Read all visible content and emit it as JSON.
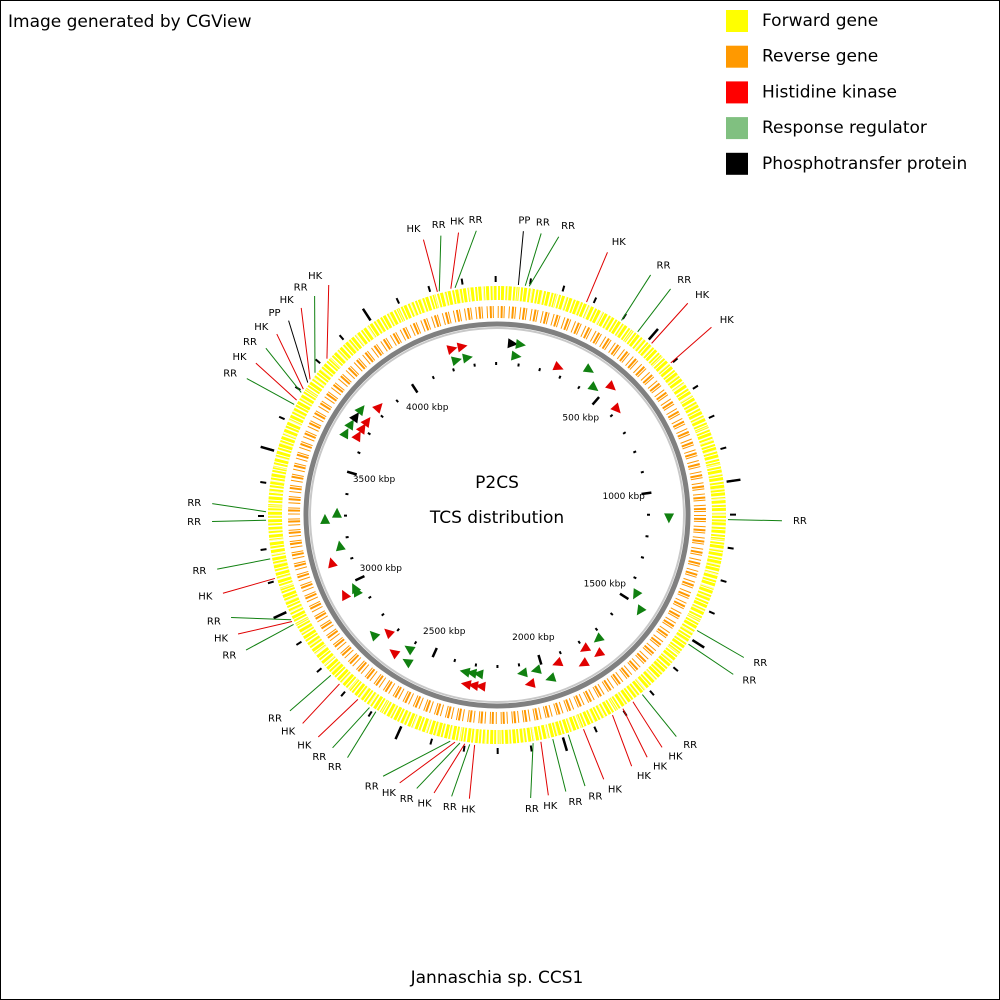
{
  "header": {
    "credit": "Image generated by CGView"
  },
  "legend": [
    {
      "label": "Forward gene",
      "color": "#ffff00"
    },
    {
      "label": "Reverse gene",
      "color": "#ff9900"
    },
    {
      "label": "Histidine kinase",
      "color": "#ff0000"
    },
    {
      "label": "Response regulator",
      "color": "#80c080"
    },
    {
      "label": "Phosphotransfer protein",
      "color": "#000000"
    }
  ],
  "map": {
    "title": "P2CS",
    "subtitle": "TCS distribution",
    "organism": "Jannaschia sp. CCS1",
    "kbp_lim": [
      0,
      4404
    ],
    "kbp_ticks": [
      {
        "value": 500,
        "label": "500 kbp"
      },
      {
        "value": 1000,
        "label": "1000 kbp"
      },
      {
        "value": 1500,
        "label": "1500 kbp"
      },
      {
        "value": 2000,
        "label": "2000 kbp"
      },
      {
        "value": 2500,
        "label": "2500 kbp"
      },
      {
        "value": 3000,
        "label": "3000 kbp"
      },
      {
        "value": 3500,
        "label": "3500 kbp"
      },
      {
        "value": 4000,
        "label": "4000 kbp"
      }
    ],
    "label_colors": {
      "HK": "#e00000",
      "RR": "#108010",
      "PP": "#000000"
    },
    "features": [
      {
        "label": "PP",
        "position": 65
      },
      {
        "label": "RR",
        "position": 86
      },
      {
        "label": "RR",
        "position": 98
      },
      {
        "label": "HK",
        "position": 279
      },
      {
        "label": "RR",
        "position": 399
      },
      {
        "label": "RR",
        "position": 459
      },
      {
        "label": "HK",
        "position": 514
      },
      {
        "label": "HK",
        "position": 597
      },
      {
        "label": "RR",
        "position": 1115
      },
      {
        "label": "RR",
        "position": 1468
      },
      {
        "label": "RR",
        "position": 1517
      },
      {
        "label": "RR",
        "position": 1725
      },
      {
        "label": "HK",
        "position": 1761
      },
      {
        "label": "HK",
        "position": 1798
      },
      {
        "label": "HK",
        "position": 1835
      },
      {
        "label": "HK",
        "position": 1933
      },
      {
        "label": "RR",
        "position": 1982
      },
      {
        "label": "RR",
        "position": 2031
      },
      {
        "label": "HK",
        "position": 2068
      },
      {
        "label": "RR",
        "position": 2092
      },
      {
        "label": "HK",
        "position": 2270
      },
      {
        "label": "RR",
        "position": 2285
      },
      {
        "label": "HK",
        "position": 2300
      },
      {
        "label": "RR",
        "position": 2315
      },
      {
        "label": "HK",
        "position": 2330
      },
      {
        "label": "RR",
        "position": 2345
      },
      {
        "label": "RR",
        "position": 2589
      },
      {
        "label": "RR",
        "position": 2612
      },
      {
        "label": "HK",
        "position": 2655
      },
      {
        "label": "HK",
        "position": 2728
      },
      {
        "label": "RR",
        "position": 2765
      },
      {
        "label": "RR",
        "position": 2957
      },
      {
        "label": "HK",
        "position": 2967
      },
      {
        "label": "RR",
        "position": 2973
      },
      {
        "label": "HK",
        "position": 3108
      },
      {
        "label": "RR",
        "position": 3169
      },
      {
        "label": "RR",
        "position": 3287
      },
      {
        "label": "RR",
        "position": 3313
      },
      {
        "label": "RR",
        "position": 3653
      },
      {
        "label": "HK",
        "position": 3668
      },
      {
        "label": "RR",
        "position": 3695
      },
      {
        "label": "HK",
        "position": 3707
      },
      {
        "label": "PP",
        "position": 3731
      },
      {
        "label": "HK",
        "position": 3743
      },
      {
        "label": "RR",
        "position": 3768
      },
      {
        "label": "HK",
        "position": 3824
      },
      {
        "label": "HK",
        "position": 4221
      },
      {
        "label": "RR",
        "position": 4227
      },
      {
        "label": "HK",
        "position": 4263
      },
      {
        "label": "RR",
        "position": 4276
      }
    ]
  }
}
